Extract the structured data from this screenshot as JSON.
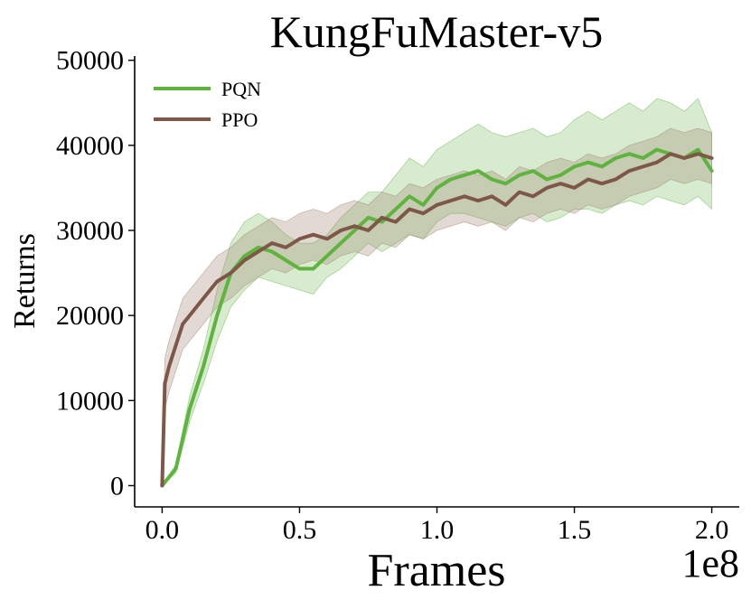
{
  "chart_data": {
    "type": "line",
    "title": "KungFuMaster-v5",
    "xlabel": "Frames",
    "ylabel": "Returns",
    "x_multiplier_label": "1e8",
    "xlim": [
      -0.1,
      2.1
    ],
    "ylim": [
      -2500,
      50500
    ],
    "xticks": [
      0.0,
      0.5,
      1.0,
      1.5,
      2.0
    ],
    "xtick_labels": [
      "0.0",
      "0.5",
      "1.0",
      "1.5",
      "2.0"
    ],
    "yticks": [
      0,
      10000,
      20000,
      30000,
      40000,
      50000
    ],
    "ytick_labels": [
      "0",
      "10000",
      "20000",
      "30000",
      "40000",
      "50000"
    ],
    "grid": false,
    "legend_position": "top-left",
    "series": [
      {
        "name": "PQN",
        "color": "#5fb33f",
        "band_color": "#5fb33f",
        "x": [
          0.0,
          0.05,
          0.1,
          0.15,
          0.2,
          0.25,
          0.3,
          0.35,
          0.4,
          0.45,
          0.5,
          0.55,
          0.6,
          0.65,
          0.7,
          0.75,
          0.8,
          0.85,
          0.9,
          0.95,
          1.0,
          1.05,
          1.1,
          1.15,
          1.2,
          1.25,
          1.3,
          1.35,
          1.4,
          1.45,
          1.5,
          1.55,
          1.6,
          1.65,
          1.7,
          1.75,
          1.8,
          1.85,
          1.9,
          1.95,
          2.0
        ],
        "y": [
          0,
          2000,
          9000,
          14000,
          20000,
          25000,
          27000,
          28000,
          27500,
          26500,
          25500,
          25500,
          27000,
          28500,
          30000,
          31500,
          31000,
          32500,
          34000,
          33000,
          35000,
          36000,
          36500,
          37000,
          36000,
          35500,
          36500,
          37000,
          36000,
          36500,
          37500,
          38000,
          37500,
          38500,
          39000,
          38500,
          39500,
          39000,
          38500,
          39500,
          37000
        ],
        "lower": [
          0,
          1500,
          7500,
          12000,
          17000,
          21000,
          23000,
          24500,
          24000,
          23500,
          23000,
          22500,
          24500,
          25500,
          27000,
          28500,
          27500,
          28500,
          29500,
          29000,
          31000,
          32000,
          32000,
          31500,
          31000,
          30500,
          31500,
          32000,
          31000,
          31500,
          32500,
          32500,
          32000,
          33000,
          33500,
          33000,
          34000,
          33500,
          33000,
          34000,
          32500
        ],
        "upper": [
          0,
          2500,
          10500,
          16000,
          23000,
          28500,
          31000,
          32000,
          31000,
          29500,
          28500,
          28500,
          29500,
          31500,
          33000,
          34500,
          34500,
          36500,
          38500,
          37500,
          39500,
          40500,
          41500,
          42500,
          41500,
          41000,
          41500,
          42000,
          41000,
          41500,
          43000,
          44000,
          43000,
          44000,
          45000,
          44000,
          45500,
          45000,
          44000,
          45500,
          41500
        ]
      },
      {
        "name": "PPO",
        "color": "#7e5748",
        "band_color": "#a0806f",
        "x": [
          0.0,
          0.01,
          0.025,
          0.05,
          0.075,
          0.1,
          0.15,
          0.2,
          0.25,
          0.3,
          0.35,
          0.4,
          0.45,
          0.5,
          0.55,
          0.6,
          0.65,
          0.7,
          0.75,
          0.8,
          0.85,
          0.9,
          0.95,
          1.0,
          1.05,
          1.1,
          1.15,
          1.2,
          1.25,
          1.3,
          1.35,
          1.4,
          1.45,
          1.5,
          1.55,
          1.6,
          1.65,
          1.7,
          1.75,
          1.8,
          1.85,
          1.9,
          1.95,
          2.0
        ],
        "y": [
          0,
          12000,
          14000,
          16500,
          19000,
          20000,
          22000,
          24000,
          25000,
          26500,
          27500,
          28500,
          28000,
          29000,
          29500,
          29000,
          30000,
          30500,
          30000,
          31500,
          31000,
          32500,
          32000,
          33000,
          33500,
          34000,
          33500,
          34000,
          33000,
          34500,
          34000,
          35000,
          35500,
          35000,
          36000,
          35500,
          36000,
          37000,
          37500,
          38000,
          39000,
          38500,
          39000,
          38500
        ],
        "lower": [
          0,
          9000,
          11000,
          13500,
          16000,
          17000,
          19000,
          21000,
          22000,
          23500,
          24500,
          25500,
          25000,
          26000,
          26500,
          26000,
          27000,
          27500,
          27000,
          28500,
          28000,
          29500,
          29000,
          30000,
          30500,
          31000,
          30500,
          31000,
          30000,
          31500,
          31000,
          32000,
          32500,
          32000,
          33000,
          32500,
          33000,
          34000,
          34500,
          35000,
          36000,
          35500,
          36000,
          35500
        ],
        "upper": [
          0,
          15000,
          17000,
          19500,
          22000,
          23000,
          25000,
          27000,
          28000,
          29500,
          30500,
          31500,
          31000,
          32000,
          32500,
          32000,
          33000,
          33500,
          33000,
          34500,
          34000,
          35500,
          35000,
          36000,
          36500,
          37000,
          36500,
          37000,
          36000,
          37500,
          37000,
          38000,
          38500,
          38000,
          39000,
          38500,
          39000,
          40000,
          40500,
          41000,
          42000,
          41500,
          42000,
          41500
        ]
      }
    ]
  }
}
